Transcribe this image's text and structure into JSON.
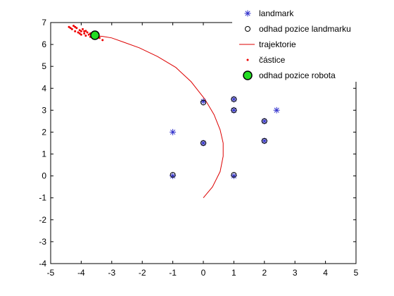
{
  "chart_data": {
    "type": "scatter",
    "xlim": [
      -5,
      5
    ],
    "ylim": [
      -4,
      7
    ],
    "x_ticks": [
      -5,
      -4,
      -3,
      -2,
      -1,
      0,
      1,
      2,
      3,
      4,
      5
    ],
    "y_ticks": [
      -4,
      -3,
      -2,
      -1,
      0,
      1,
      2,
      3,
      4,
      5,
      6,
      7
    ],
    "grid": false,
    "legend_placement": "top-right",
    "colors": {
      "landmark": "#3333cc",
      "landmark_estimate": "#000000",
      "trajectory": "#dd0000",
      "particles": "#ee0000",
      "robot_fill": "#22dd22",
      "robot_edge": "#000000"
    },
    "series": [
      {
        "name": "landmark",
        "marker": "asterisk",
        "points": [
          [
            -1,
            2
          ],
          [
            -1,
            0
          ],
          [
            0,
            3.4
          ],
          [
            0,
            1.5
          ],
          [
            1,
            3.5
          ],
          [
            1,
            3
          ],
          [
            1,
            0
          ],
          [
            2,
            2.5
          ],
          [
            2,
            1.6
          ],
          [
            2.4,
            3
          ]
        ]
      },
      {
        "name": "odhad pozice landmarku",
        "marker": "circle",
        "points": [
          [
            -1,
            0.05
          ],
          [
            0,
            3.35
          ],
          [
            0,
            1.5
          ],
          [
            1,
            3.5
          ],
          [
            1,
            3.0
          ],
          [
            1,
            0.05
          ],
          [
            2,
            2.5
          ],
          [
            2,
            1.6
          ]
        ]
      },
      {
        "name": "trajektorie",
        "marker": "line",
        "points": [
          [
            0,
            -1
          ],
          [
            0.3,
            -0.5
          ],
          [
            0.55,
            0.2
          ],
          [
            0.65,
            0.9
          ],
          [
            0.65,
            1.5
          ],
          [
            0.55,
            2.1
          ],
          [
            0.35,
            2.8
          ],
          [
            0.05,
            3.5
          ],
          [
            -0.4,
            4.3
          ],
          [
            -0.9,
            4.95
          ],
          [
            -1.5,
            5.45
          ],
          [
            -2.1,
            5.85
          ],
          [
            -2.6,
            6.1
          ],
          [
            -3.0,
            6.3
          ],
          [
            -3.3,
            6.37
          ],
          [
            -3.55,
            6.4
          ]
        ]
      },
      {
        "name": "částice",
        "marker": "dot",
        "points": [
          [
            -4.4,
            6.8
          ],
          [
            -4.3,
            6.7
          ],
          [
            -4.25,
            6.85
          ],
          [
            -4.2,
            6.6
          ],
          [
            -4.15,
            6.75
          ],
          [
            -4.1,
            6.55
          ],
          [
            -4.05,
            6.65
          ],
          [
            -4.0,
            6.6
          ],
          [
            -4.0,
            6.45
          ],
          [
            -3.95,
            6.7
          ],
          [
            -3.9,
            6.5
          ],
          [
            -3.9,
            6.6
          ],
          [
            -3.85,
            6.4
          ],
          [
            -3.8,
            6.55
          ],
          [
            -3.75,
            6.45
          ],
          [
            -3.7,
            6.5
          ],
          [
            -3.7,
            6.35
          ],
          [
            -3.65,
            6.42
          ],
          [
            -3.6,
            6.5
          ],
          [
            -3.55,
            6.38
          ],
          [
            -3.5,
            6.45
          ],
          [
            -3.45,
            6.35
          ],
          [
            -4.35,
            6.75
          ],
          [
            -4.05,
            6.5
          ],
          [
            -3.85,
            6.62
          ],
          [
            -3.3,
            6.2
          ],
          [
            -3.4,
            6.3
          ],
          [
            -4.2,
            6.8
          ]
        ]
      },
      {
        "name": "odhad pozice robota",
        "marker": "big-circle",
        "points": [
          [
            -3.55,
            6.42
          ]
        ]
      }
    ]
  }
}
